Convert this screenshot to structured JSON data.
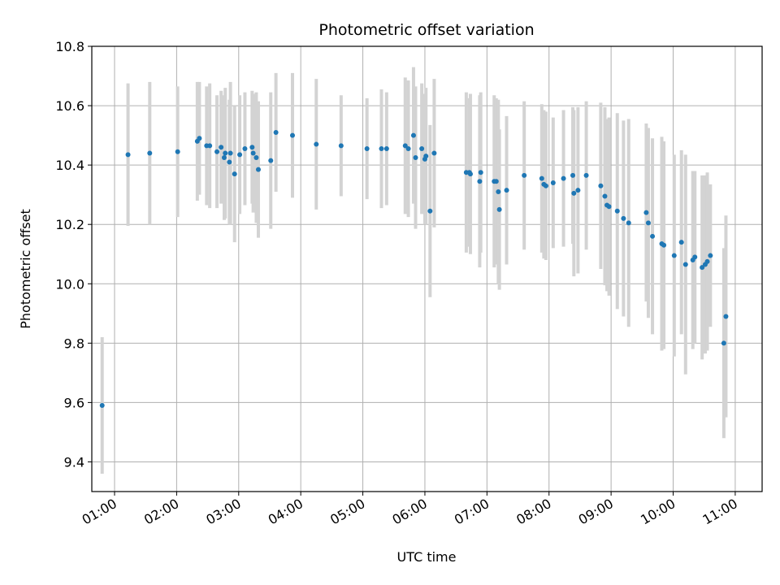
{
  "chart_data": {
    "type": "scatter",
    "title": "Photometric offset variation",
    "xlabel": "UTC time",
    "ylabel": "Photometric offset",
    "xlim": [
      "00:38",
      "11:26"
    ],
    "ylim": [
      9.3,
      10.8
    ],
    "grid": true,
    "xticks": [
      "01:00",
      "02:00",
      "03:00",
      "04:00",
      "05:00",
      "06:00",
      "07:00",
      "08:00",
      "09:00",
      "10:00",
      "11:00"
    ],
    "yticks": [
      "9.4",
      "9.6",
      "9.8",
      "10.0",
      "10.2",
      "10.4",
      "10.6",
      "10.8"
    ],
    "point_color": "#1f77b4",
    "errorbar_color": "#d3d3d3",
    "series": [
      {
        "x": [
          "00:48",
          "01:13",
          "01:34",
          "02:01",
          "02:20",
          "02:22",
          "02:29",
          "02:32",
          "02:39",
          "02:43",
          "02:46",
          "02:47",
          "02:51",
          "02:52",
          "02:56",
          "03:01",
          "03:06",
          "03:13",
          "03:14",
          "03:17",
          "03:19",
          "03:31",
          "03:36",
          "03:52",
          "04:15",
          "04:39",
          "05:04",
          "05:18",
          "05:23",
          "05:41",
          "05:44",
          "05:49",
          "05:51",
          "05:57",
          "06:00",
          "06:01",
          "06:05",
          "06:09",
          "06:40",
          "06:43",
          "06:44",
          "06:53",
          "06:54",
          "07:07",
          "07:09",
          "07:11",
          "07:12",
          "07:19",
          "07:36",
          "07:53",
          "07:55",
          "07:57",
          "08:04",
          "08:14",
          "08:23",
          "08:24",
          "08:28",
          "08:36",
          "08:50",
          "08:54",
          "08:56",
          "08:58",
          "09:06",
          "09:12",
          "09:17",
          "09:34",
          "09:36",
          "09:40",
          "09:49",
          "09:51",
          "10:01",
          "10:08",
          "10:12",
          "10:19",
          "10:21",
          "10:28",
          "10:31",
          "10:33",
          "10:36",
          "10:49",
          "10:51"
        ],
        "y": [
          9.59,
          10.435,
          10.44,
          10.445,
          10.48,
          10.49,
          10.465,
          10.465,
          10.445,
          10.46,
          10.425,
          10.44,
          10.41,
          10.44,
          10.37,
          10.435,
          10.455,
          10.46,
          10.44,
          10.425,
          10.385,
          10.415,
          10.51,
          10.5,
          10.47,
          10.465,
          10.455,
          10.455,
          10.455,
          10.465,
          10.455,
          10.5,
          10.425,
          10.455,
          10.42,
          10.43,
          10.245,
          10.44,
          10.375,
          10.375,
          10.37,
          10.345,
          10.375,
          10.345,
          10.345,
          10.31,
          10.25,
          10.315,
          10.365,
          10.355,
          10.335,
          10.33,
          10.34,
          10.355,
          10.365,
          10.305,
          10.315,
          10.365,
          10.33,
          10.295,
          10.265,
          10.26,
          10.245,
          10.22,
          10.205,
          10.24,
          10.205,
          10.16,
          10.135,
          10.13,
          10.095,
          10.14,
          10.065,
          10.08,
          10.09,
          10.055,
          10.065,
          10.075,
          10.095,
          9.8,
          9.89
        ],
        "err": [
          0.23,
          0.24,
          0.24,
          0.22,
          0.2,
          0.19,
          0.2,
          0.21,
          0.19,
          0.19,
          0.21,
          0.22,
          0.21,
          0.24,
          0.23,
          0.2,
          0.19,
          0.19,
          0.2,
          0.22,
          0.23,
          0.23,
          0.2,
          0.21,
          0.22,
          0.17,
          0.17,
          0.2,
          0.19,
          0.23,
          0.23,
          0.23,
          0.24,
          0.22,
          0.22,
          0.23,
          0.29,
          0.25,
          0.27,
          0.25,
          0.27,
          0.29,
          0.27,
          0.29,
          0.28,
          0.31,
          0.27,
          0.25,
          0.25,
          0.25,
          0.25,
          0.25,
          0.22,
          0.23,
          0.23,
          0.28,
          0.28,
          0.25,
          0.28,
          0.3,
          0.29,
          0.3,
          0.33,
          0.33,
          0.35,
          0.3,
          0.32,
          0.33,
          0.36,
          0.35,
          0.34,
          0.31,
          0.37,
          0.3,
          0.29,
          0.31,
          0.3,
          0.3,
          0.24,
          0.32,
          0.34
        ]
      }
    ]
  }
}
